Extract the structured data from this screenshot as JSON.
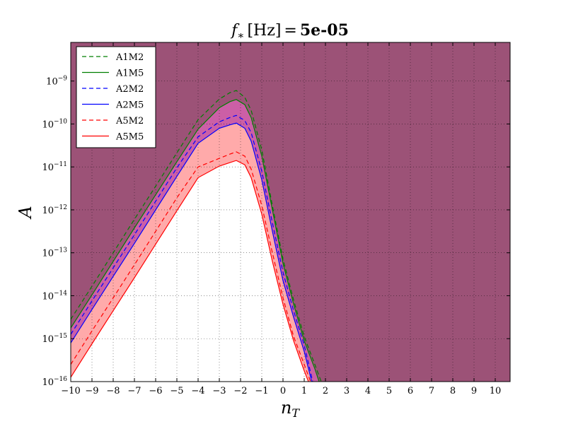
{
  "chart_data": {
    "type": "area",
    "title_prefix": "f",
    "title_subscript": "∗",
    "title_unit": "[Hz]",
    "title_equals": "=",
    "title_value": "5e-05",
    "xlabel": "n",
    "xlabel_subscript": "T",
    "ylabel": "A",
    "xlim": [
      -10,
      10.7
    ],
    "ylim_log10": [
      -16,
      -8.1
    ],
    "y_log_scale": true,
    "grid": true,
    "legend_position": "top-left",
    "x_ticks": [
      -10,
      -9,
      -8,
      -7,
      -6,
      -5,
      -4,
      -3,
      -2,
      -1,
      0,
      1,
      2,
      3,
      4,
      5,
      6,
      7,
      8,
      9,
      10
    ],
    "x_tick_labels": [
      "−10",
      "−9",
      "−8",
      "−7",
      "−6",
      "−5",
      "−4",
      "−3",
      "−2",
      "−1",
      "0",
      "1",
      "2",
      "3",
      "4",
      "5",
      "6",
      "7",
      "8",
      "9",
      "10"
    ],
    "y_ticks_log10": [
      -16,
      -15,
      -14,
      -13,
      -12,
      -11,
      -10,
      -9
    ],
    "y_tick_labels": [
      {
        "base": "10",
        "exp": "−16"
      },
      {
        "base": "10",
        "exp": "−15"
      },
      {
        "base": "10",
        "exp": "−14"
      },
      {
        "base": "10",
        "exp": "−13"
      },
      {
        "base": "10",
        "exp": "−12"
      },
      {
        "base": "10",
        "exp": "−11"
      },
      {
        "base": "10",
        "exp": "−10"
      },
      {
        "base": "10",
        "exp": "−9"
      }
    ],
    "colors": {
      "excluded_region": "#9c5277",
      "band_outer": "#cc5fa6",
      "band_inner": "#ffaaaa",
      "allowed_region": "#ffffff"
    },
    "series": [
      {
        "name": "A1M2",
        "color": "#007f00",
        "dash": "dashed",
        "points": [
          [
            -10,
            -14.55
          ],
          [
            -9,
            -13.78
          ],
          [
            -8,
            -13.0
          ],
          [
            -7,
            -12.22
          ],
          [
            -6,
            -11.45
          ],
          [
            -5,
            -10.67
          ],
          [
            -4,
            -9.9
          ],
          [
            -3,
            -9.42
          ],
          [
            -2.5,
            -9.27
          ],
          [
            -2.2,
            -9.22
          ],
          [
            -1.8,
            -9.38
          ],
          [
            -1.5,
            -9.68
          ],
          [
            -1,
            -10.6
          ],
          [
            -0.5,
            -11.9
          ],
          [
            0,
            -13.15
          ],
          [
            0.5,
            -14.1
          ],
          [
            1,
            -14.95
          ],
          [
            1.5,
            -15.6
          ],
          [
            1.8,
            -16.0
          ]
        ]
      },
      {
        "name": "A1M5",
        "color": "#007f00",
        "dash": "solid",
        "points": [
          [
            -10,
            -14.75
          ],
          [
            -9,
            -13.98
          ],
          [
            -8,
            -13.2
          ],
          [
            -7,
            -12.42
          ],
          [
            -6,
            -11.65
          ],
          [
            -5,
            -10.88
          ],
          [
            -4,
            -10.12
          ],
          [
            -3,
            -9.62
          ],
          [
            -2.5,
            -9.48
          ],
          [
            -2.2,
            -9.43
          ],
          [
            -1.8,
            -9.55
          ],
          [
            -1.5,
            -9.85
          ],
          [
            -1,
            -10.75
          ],
          [
            -0.5,
            -12.0
          ],
          [
            0,
            -13.25
          ],
          [
            0.5,
            -14.2
          ],
          [
            1,
            -15.05
          ],
          [
            1.5,
            -15.7
          ],
          [
            1.7,
            -16.0
          ]
        ]
      },
      {
        "name": "A2M2",
        "color": "#0000ff",
        "dash": "dashed",
        "points": [
          [
            -10,
            -14.9
          ],
          [
            -9,
            -14.12
          ],
          [
            -8,
            -13.35
          ],
          [
            -7,
            -12.58
          ],
          [
            -6,
            -11.8
          ],
          [
            -5,
            -11.02
          ],
          [
            -4,
            -10.3
          ],
          [
            -3,
            -9.95
          ],
          [
            -2.5,
            -9.85
          ],
          [
            -2.2,
            -9.8
          ],
          [
            -1.8,
            -9.92
          ],
          [
            -1.5,
            -10.2
          ],
          [
            -1,
            -11.1
          ],
          [
            -0.5,
            -12.3
          ],
          [
            0,
            -13.45
          ],
          [
            0.5,
            -14.35
          ],
          [
            1,
            -15.15
          ],
          [
            1.4,
            -16.0
          ]
        ]
      },
      {
        "name": "A2M5",
        "color": "#0000ff",
        "dash": "solid",
        "points": [
          [
            -10,
            -15.1
          ],
          [
            -9,
            -14.32
          ],
          [
            -8,
            -13.55
          ],
          [
            -7,
            -12.78
          ],
          [
            -6,
            -12.0
          ],
          [
            -5,
            -11.22
          ],
          [
            -4,
            -10.45
          ],
          [
            -3,
            -10.1
          ],
          [
            -2.5,
            -10.02
          ],
          [
            -2.2,
            -9.98
          ],
          [
            -1.8,
            -10.1
          ],
          [
            -1.5,
            -10.4
          ],
          [
            -1,
            -11.3
          ],
          [
            -0.5,
            -12.5
          ],
          [
            0,
            -13.65
          ],
          [
            0.5,
            -14.5
          ],
          [
            1,
            -15.3
          ],
          [
            1.35,
            -16.0
          ]
        ]
      },
      {
        "name": "A5M2",
        "color": "#ff0000",
        "dash": "dashed",
        "points": [
          [
            -10,
            -15.6
          ],
          [
            -9,
            -14.82
          ],
          [
            -8,
            -14.05
          ],
          [
            -7,
            -13.28
          ],
          [
            -6,
            -12.5
          ],
          [
            -5,
            -11.72
          ],
          [
            -4,
            -11.0
          ],
          [
            -3,
            -10.8
          ],
          [
            -2.5,
            -10.7
          ],
          [
            -2.2,
            -10.65
          ],
          [
            -1.8,
            -10.75
          ],
          [
            -1.5,
            -11.05
          ],
          [
            -1,
            -11.9
          ],
          [
            -0.5,
            -13.0
          ],
          [
            0,
            -14.05
          ],
          [
            0.5,
            -14.95
          ],
          [
            1,
            -15.6
          ],
          [
            1.3,
            -16.0
          ]
        ]
      },
      {
        "name": "A5M5",
        "color": "#ff0000",
        "dash": "solid",
        "points": [
          [
            -10,
            -15.9
          ],
          [
            -9,
            -15.12
          ],
          [
            -8,
            -14.35
          ],
          [
            -7,
            -13.58
          ],
          [
            -6,
            -12.8
          ],
          [
            -5,
            -12.02
          ],
          [
            -4,
            -11.25
          ],
          [
            -3,
            -10.98
          ],
          [
            -2.5,
            -10.9
          ],
          [
            -2.2,
            -10.85
          ],
          [
            -1.8,
            -10.95
          ],
          [
            -1.5,
            -11.25
          ],
          [
            -1,
            -12.1
          ],
          [
            -0.5,
            -13.2
          ],
          [
            0,
            -14.2
          ],
          [
            0.5,
            -15.05
          ],
          [
            1,
            -15.75
          ],
          [
            1.2,
            -16.0
          ]
        ]
      }
    ]
  }
}
